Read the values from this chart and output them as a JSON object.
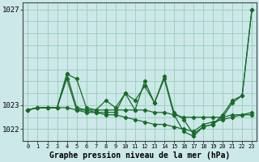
{
  "title": "Graphe pression niveau de la mer (hPa)",
  "bg_color": "#cce8e8",
  "grid_color": "#99ccbb",
  "line_color": "#1a6b2a",
  "marker_color": "#1a6b2a",
  "xlim": [
    -0.5,
    23.5
  ],
  "ylim": [
    1021.5,
    1027.3
  ],
  "ytick_labels": [
    "1027",
    "1023",
    "1022"
  ],
  "ytick_vals": [
    1027.0,
    1023.0,
    1022.0
  ],
  "series": [
    [
      1022.8,
      1022.9,
      1022.9,
      1022.9,
      1024.3,
      1024.1,
      1022.9,
      1022.8,
      1023.2,
      1022.9,
      1023.5,
      1023.2,
      1023.8,
      1023.1,
      1024.2,
      1022.7,
      1022.4,
      1021.8,
      1022.1,
      1022.2,
      1022.6,
      1023.2,
      1023.4,
      1027.0
    ],
    [
      1022.8,
      1022.9,
      1022.9,
      1022.9,
      1024.3,
      1022.9,
      1022.8,
      1022.8,
      1022.8,
      1022.8,
      1022.8,
      1022.8,
      1022.8,
      1022.7,
      1022.7,
      1022.6,
      1022.5,
      1022.5,
      1022.5,
      1022.5,
      1022.5,
      1022.6,
      1022.6,
      1022.7
    ],
    [
      1022.8,
      1022.9,
      1022.9,
      1022.9,
      1024.1,
      1022.8,
      1022.7,
      1022.7,
      1022.7,
      1022.7,
      1023.5,
      1022.8,
      1024.0,
      1023.1,
      1024.1,
      1022.6,
      1021.9,
      1021.7,
      1022.1,
      1022.2,
      1022.5,
      1023.1,
      1023.4,
      1027.0
    ],
    [
      1022.8,
      1022.9,
      1022.9,
      1022.9,
      1022.9,
      1022.8,
      1022.8,
      1022.7,
      1022.6,
      1022.6,
      1022.5,
      1022.4,
      1022.3,
      1022.2,
      1022.2,
      1022.1,
      1022.0,
      1021.9,
      1022.2,
      1022.3,
      1022.4,
      1022.5,
      1022.6,
      1022.6
    ]
  ]
}
